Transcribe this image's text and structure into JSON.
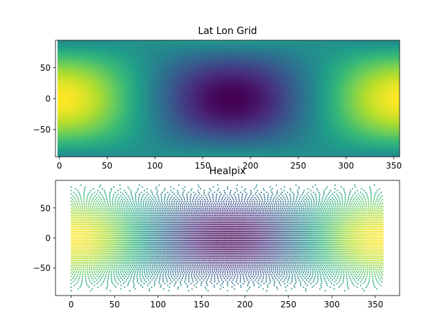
{
  "chart_data": [
    {
      "type": "heatmap",
      "title": "Lat Lon Grid",
      "xlabel": "",
      "ylabel": "",
      "xlim": [
        -4,
        356
      ],
      "ylim": [
        -94,
        94
      ],
      "xticks": [
        0,
        50,
        100,
        150,
        200,
        250,
        300,
        350
      ],
      "yticks": [
        -50,
        0,
        50
      ],
      "field": "cos(longitude) * cos(latitude)",
      "lon_range": [
        -1.875,
        358.125
      ],
      "lat_range": [
        -93.75,
        93.75
      ],
      "cell_size_deg": 3.75,
      "colormap": "viridis",
      "value_range": [
        -1,
        1
      ]
    },
    {
      "type": "scatter",
      "title": "Healpix",
      "xlabel": "",
      "ylabel": "",
      "xlim": [
        -18,
        378
      ],
      "ylim": [
        -96,
        96
      ],
      "xticks": [
        0,
        50,
        100,
        150,
        200,
        250,
        300,
        350
      ],
      "yticks": [
        -50,
        0,
        50
      ],
      "field": "cos(longitude) * cos(latitude)",
      "lon_range": [
        0,
        360
      ],
      "lat_range": [
        -88,
        88
      ],
      "colormap": "viridis",
      "value_range": [
        -1,
        1
      ],
      "marker_size": 1
    }
  ]
}
